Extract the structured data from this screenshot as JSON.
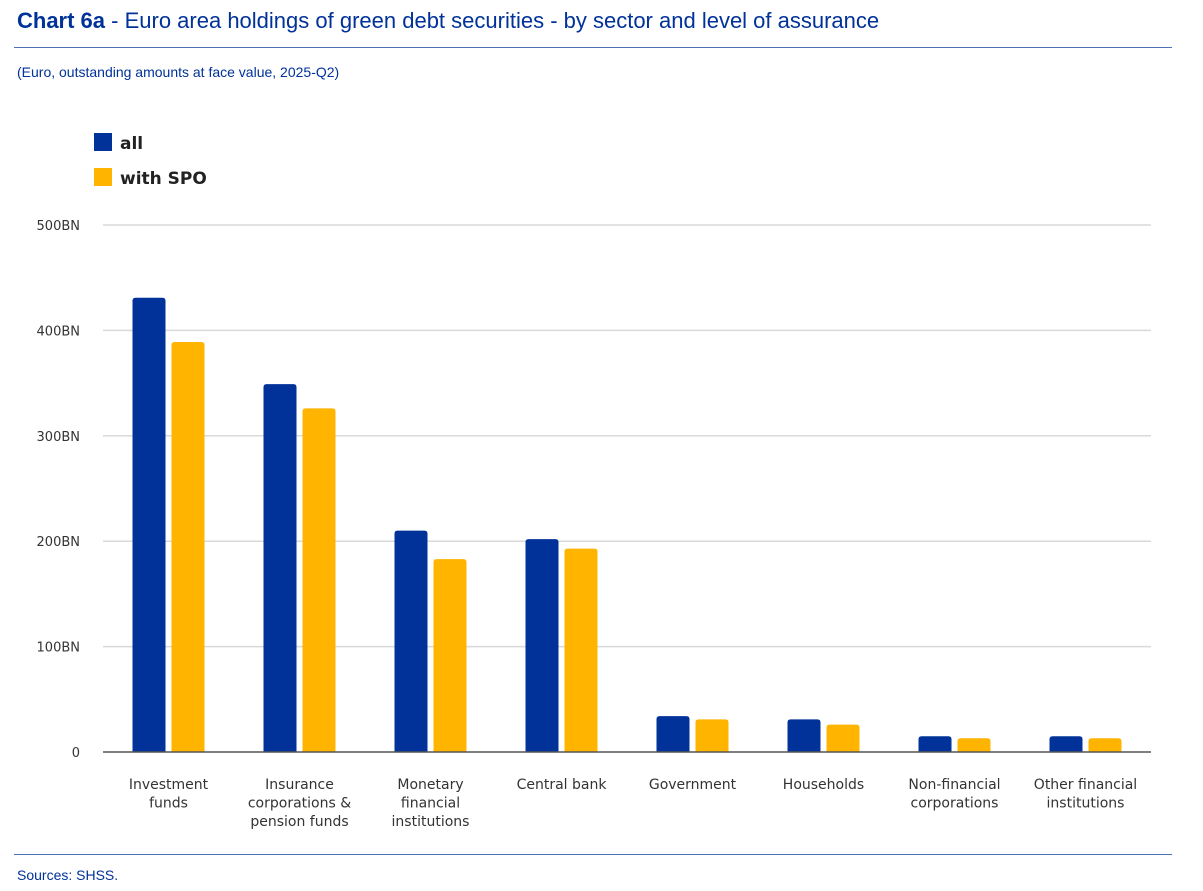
{
  "header": {
    "title_bold": "Chart 6a",
    "title_rest": " - Euro area holdings of green debt securities - by sector and level of assurance",
    "subtitle": "(Euro, outstanding amounts at face value, 2025-Q2)"
  },
  "footer": {
    "sources": "Sources: SHSS."
  },
  "chart_data": {
    "type": "bar",
    "title": "Chart 6a - Euro area holdings of green debt securities - by sector and level of assurance",
    "subtitle": "(Euro, outstanding amounts at face value, 2025-Q2)",
    "xlabel": "",
    "ylabel": "",
    "unit": "EUR billions",
    "ylim": [
      0,
      500
    ],
    "yticks": [
      0,
      100,
      200,
      300,
      400,
      500
    ],
    "ytick_labels": [
      "0",
      "100BN",
      "200BN",
      "300BN",
      "400BN",
      "500BN"
    ],
    "grid": true,
    "legend_position": "top-left",
    "categories": [
      [
        "Investment",
        "funds"
      ],
      [
        "Insurance",
        "corporations &",
        "pension funds"
      ],
      [
        "Monetary",
        "financial",
        "institutions"
      ],
      [
        "Central bank"
      ],
      [
        "Government"
      ],
      [
        "Households"
      ],
      [
        "Non-financial",
        "corporations"
      ],
      [
        "Other financial",
        "institutions"
      ]
    ],
    "series": [
      {
        "name": "all",
        "color": "#003299",
        "values": [
          431,
          349,
          210,
          202,
          34,
          31,
          15,
          15
        ]
      },
      {
        "name": "with SPO",
        "color": "#FFB400",
        "values": [
          389,
          326,
          183,
          193,
          31,
          26,
          13,
          13
        ]
      }
    ],
    "source": "Sources: SHSS."
  }
}
